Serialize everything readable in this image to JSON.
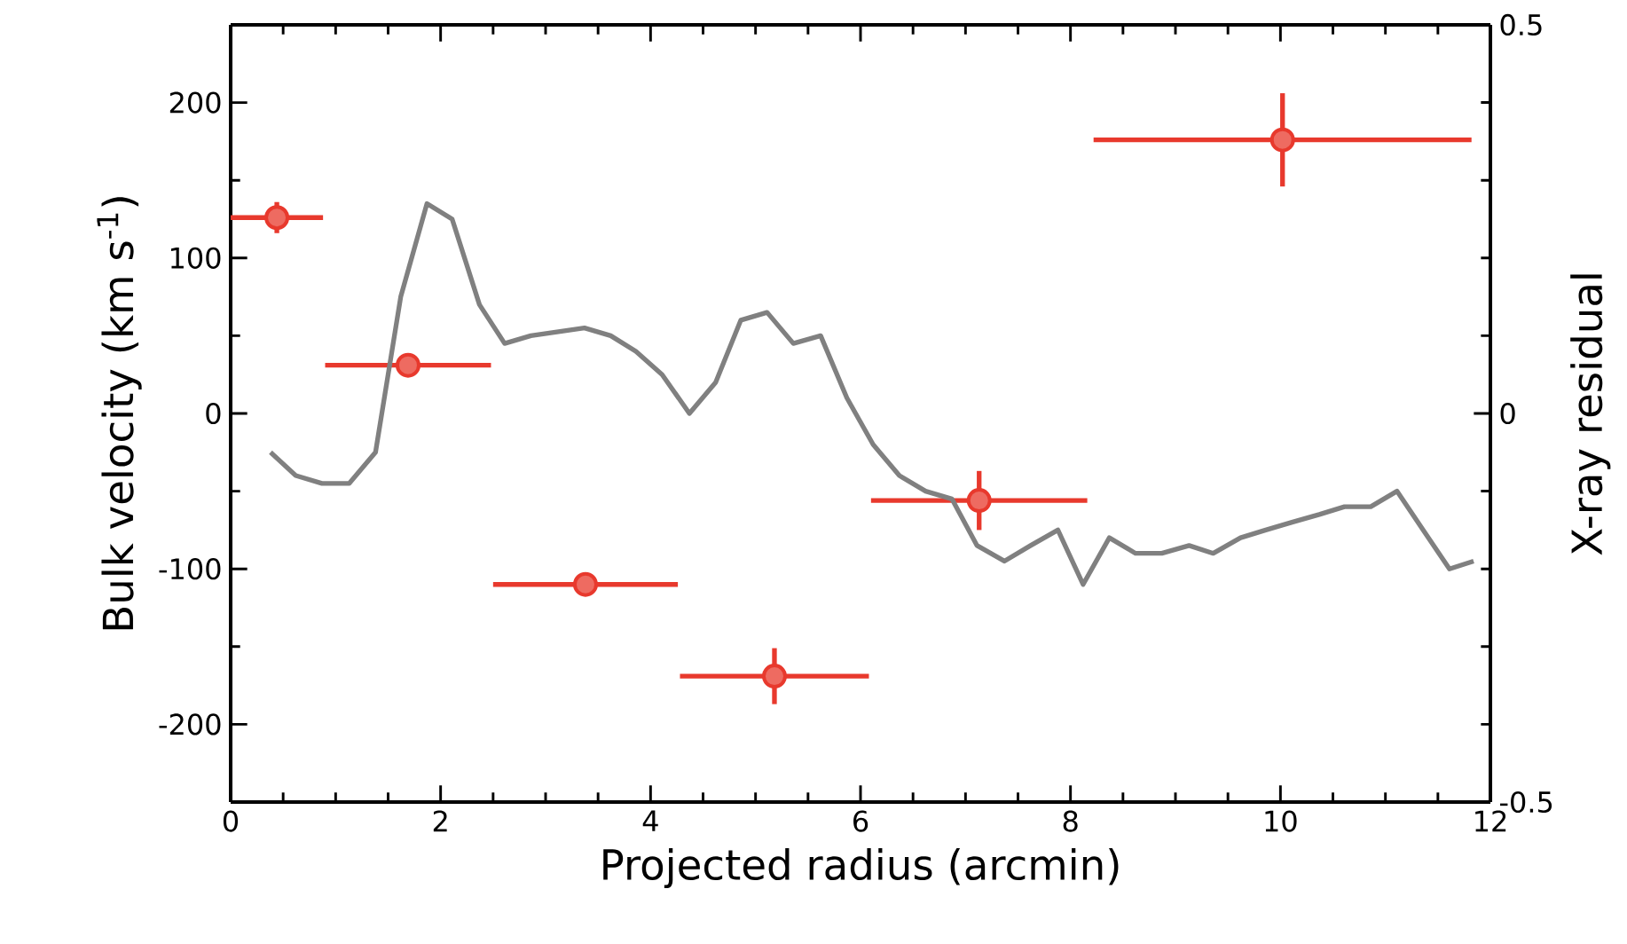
{
  "chart_data": {
    "type": "scatter",
    "xlabel": "Projected radius (arcmin)",
    "ylabel": "Bulk velocity (km s$^{-1}$)",
    "y2label": "X-ray residual",
    "xlim": [
      0,
      12
    ],
    "xticks": [
      0,
      2,
      4,
      6,
      8,
      10,
      12
    ],
    "ylim": [
      -250,
      250
    ],
    "yticks": [
      -200,
      -100,
      0,
      100,
      200
    ],
    "y2lim": [
      -0.5,
      0.5
    ],
    "y2ticks": [
      -0.5,
      0,
      0.5
    ],
    "grid": false,
    "series": [
      {
        "axis": "y",
        "color": "#e8392d",
        "marker": "circle",
        "x": [
          0.44,
          1.69,
          3.38,
          5.18,
          7.13,
          10.02
        ],
        "values": [
          126,
          31,
          -110,
          -169,
          -56,
          176
        ],
        "xerrors": [
          0.44,
          0.79,
          0.88,
          0.9,
          1.03,
          1.8
        ],
        "errors": [
          10,
          null,
          null,
          18,
          19,
          30
        ]
      },
      {
        "type": "line",
        "axis": "y2",
        "color": "#808080",
        "line_style": "solid",
        "x": [
          0.38,
          0.62,
          0.87,
          1.13,
          1.38,
          1.62,
          1.87,
          2.11,
          2.37,
          2.61,
          2.86,
          3.37,
          3.62,
          3.86,
          4.11,
          4.37,
          4.62,
          4.86,
          5.11,
          5.36,
          5.62,
          5.87,
          6.12,
          6.37,
          6.62,
          6.87,
          7.11,
          7.37,
          7.62,
          7.88,
          8.12,
          8.37,
          8.62,
          8.87,
          9.13,
          9.36,
          9.62,
          9.86,
          10.11,
          10.37,
          10.61,
          10.86,
          11.11,
          11.36,
          11.61,
          11.84
        ],
        "values": [
          -0.05,
          -0.08,
          -0.09,
          -0.09,
          -0.05,
          0.15,
          0.27,
          0.25,
          0.14,
          0.09,
          0.1,
          0.11,
          0.1,
          0.08,
          0.05,
          0.0,
          0.04,
          0.12,
          0.13,
          0.09,
          0.1,
          0.02,
          -0.04,
          -0.08,
          -0.1,
          -0.11,
          -0.17,
          -0.19,
          -0.17,
          -0.15,
          -0.22,
          -0.16,
          -0.18,
          -0.18,
          -0.17,
          -0.18,
          -0.16,
          -0.15,
          -0.14,
          -0.13,
          -0.12,
          -0.12,
          -0.1,
          -0.15,
          -0.2,
          -0.19
        ]
      }
    ]
  }
}
